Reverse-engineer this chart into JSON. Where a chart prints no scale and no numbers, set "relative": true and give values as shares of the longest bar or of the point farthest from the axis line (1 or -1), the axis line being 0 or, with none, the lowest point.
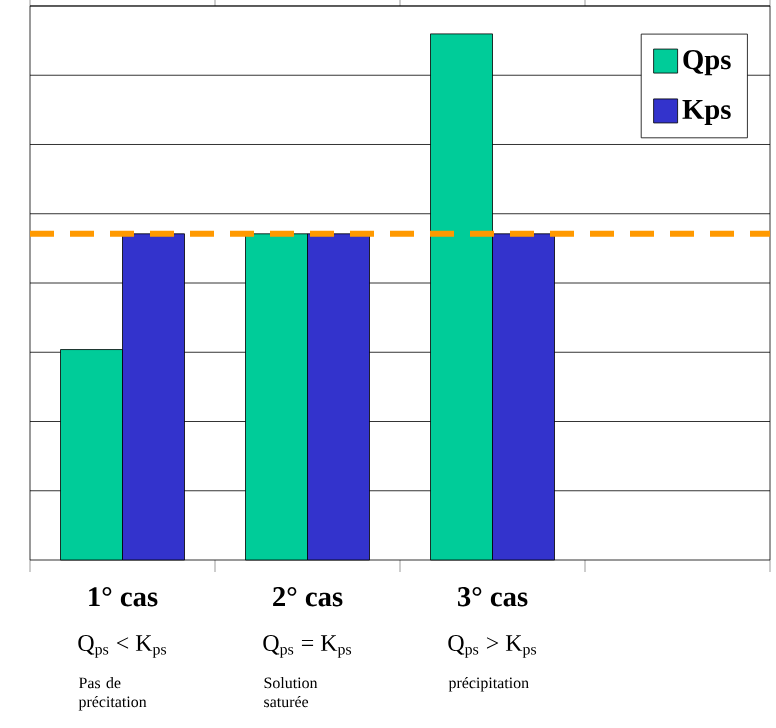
{
  "chart_data": {
    "type": "bar",
    "relative": true,
    "categories": [
      "1° cas",
      "2° cas",
      "3° cas",
      null
    ],
    "series": [
      {
        "name": "Qps",
        "color": "#00cc99",
        "values": [
          0.4,
          0.62,
          1,
          null
        ]
      },
      {
        "name": "Kps",
        "color": "#3333cc",
        "values": [
          0.62,
          0.62,
          0.62,
          null
        ]
      }
    ],
    "ref_lines": [
      {
        "axis": "y",
        "value": 0.62,
        "color": "#ff9900",
        "line_style": "dashed"
      }
    ],
    "annotations": [
      "Q$_{ps}$ < K$_{ps}$",
      "Pas de précitation",
      "Q$_{ps}$ = K$_{ps}$",
      "Solution saturée",
      "Q$_{ps}$ > K$_{ps}$",
      "précipitation"
    ],
    "grid": "y",
    "legend": "top right"
  }
}
